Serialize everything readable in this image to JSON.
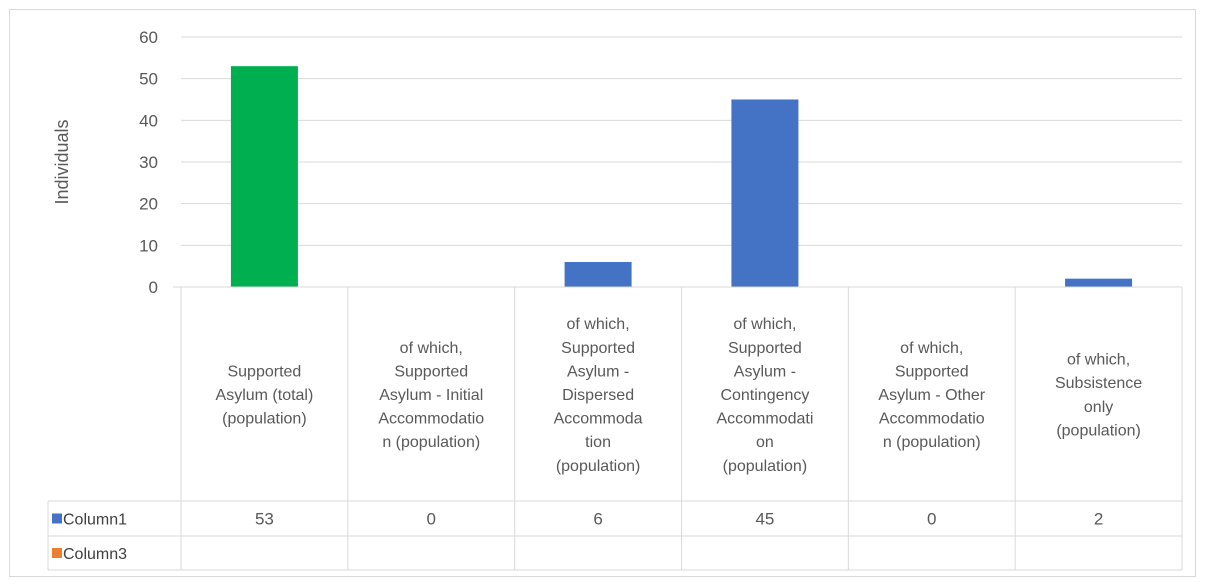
{
  "chart_data": {
    "type": "bar",
    "xlabel": "",
    "ylabel": "Individuals",
    "ylim": [
      0,
      60
    ],
    "yticks": [
      0,
      10,
      20,
      30,
      40,
      50,
      60
    ],
    "grid": true,
    "legend": "data-table",
    "categories": [
      "Supported Asylum (total) (population)",
      "of which, Supported Asylum - Initial Accommodation (population)",
      "of which, Supported Asylum - Dispersed Accommodation (population)",
      "of which, Supported Asylum - Contingency Accommodation (population)",
      "of which, Supported Asylum - Other Accommodation (population)",
      "of which, Subsistence only (population)"
    ],
    "category_lines": [
      [
        "Supported",
        "Asylum (total)",
        "(population)"
      ],
      [
        "of which,",
        "Supported",
        "Asylum - Initial",
        "Accommodatio",
        "n (population)"
      ],
      [
        "of which,",
        "Supported",
        "Asylum -",
        "Dispersed",
        "Accommoda",
        "tion",
        "(population)"
      ],
      [
        "of which,",
        "Supported",
        "Asylum -",
        "Contingency",
        "Accommodati",
        "on",
        "(population)"
      ],
      [
        "of which,",
        "Supported",
        "Asylum - Other",
        "Accommodatio",
        "n (population)"
      ],
      [
        "of which,",
        "Subsistence",
        "only",
        "(population)"
      ]
    ],
    "series": [
      {
        "name": "Column1",
        "color": "#4472C4",
        "values": [
          53,
          0,
          6,
          45,
          0,
          2
        ],
        "table_values": [
          "53",
          "0",
          "6",
          "45",
          "0",
          "2"
        ],
        "bar_colors": [
          "#00B050",
          "#4472C4",
          "#4472C4",
          "#4472C4",
          "#4472C4",
          "#4472C4"
        ]
      },
      {
        "name": "Column3",
        "color": "#ED7D31",
        "values": [
          null,
          null,
          null,
          null,
          null,
          null
        ],
        "table_values": [
          "",
          "",
          "",
          "",
          "",
          ""
        ]
      }
    ]
  }
}
